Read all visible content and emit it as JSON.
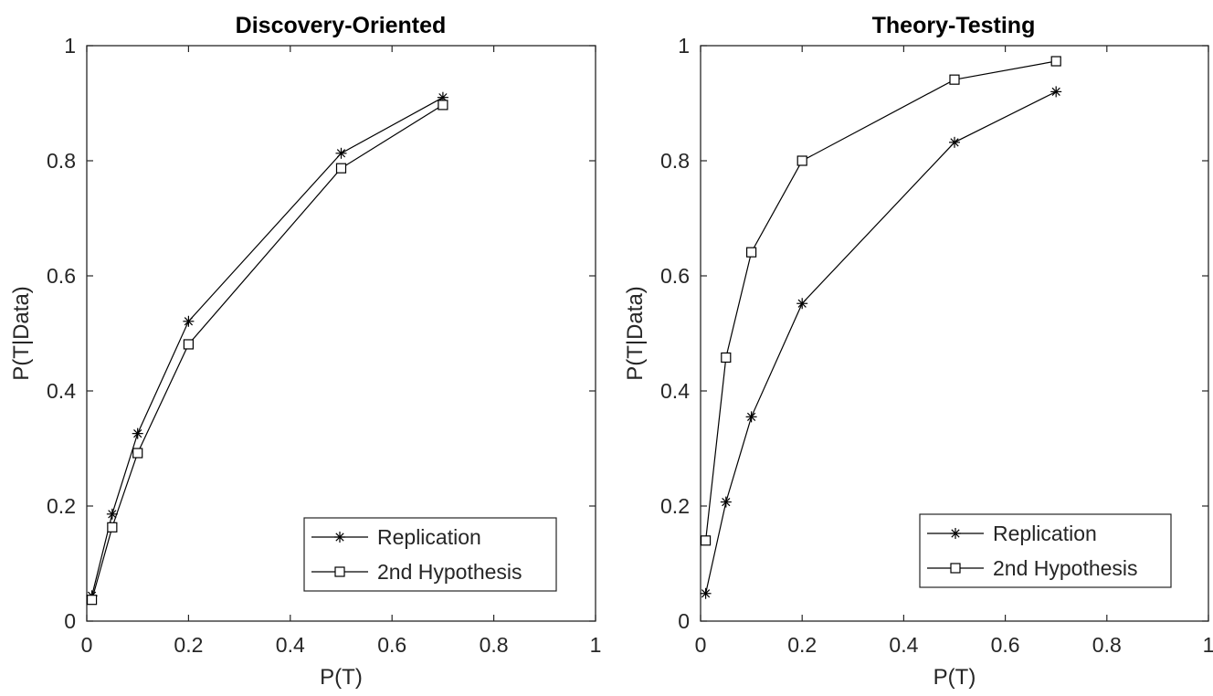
{
  "chart_data": [
    {
      "type": "line",
      "title": "Discovery-Oriented",
      "xlabel": "P(T)",
      "ylabel": "P(T|Data)",
      "xlim": [
        0,
        1
      ],
      "ylim": [
        0,
        1
      ],
      "xticks": [
        0,
        0.2,
        0.4,
        0.6,
        0.8,
        1
      ],
      "yticks": [
        0,
        0.2,
        0.4,
        0.6,
        0.8,
        1
      ],
      "xtick_labels": [
        "0",
        "0.2",
        "0.4",
        "0.6",
        "0.8",
        "1"
      ],
      "ytick_labels": [
        "0",
        "0.2",
        "0.4",
        "0.6",
        "0.8",
        "1"
      ],
      "grid": false,
      "legend_position": "bottom-right",
      "x": [
        0.01,
        0.05,
        0.1,
        0.2,
        0.5,
        0.7
      ],
      "series": [
        {
          "name": "Replication",
          "marker": "asterisk",
          "values": [
            0.044,
            0.186,
            0.326,
            0.521,
            0.813,
            0.91
          ]
        },
        {
          "name": "2nd Hypothesis",
          "marker": "square",
          "values": [
            0.037,
            0.163,
            0.292,
            0.481,
            0.787,
            0.897
          ]
        }
      ]
    },
    {
      "type": "line",
      "title": "Theory-Testing",
      "xlabel": "P(T)",
      "ylabel": "P(T|Data)",
      "xlim": [
        0,
        1
      ],
      "ylim": [
        0,
        1
      ],
      "xticks": [
        0,
        0.2,
        0.4,
        0.6,
        0.8,
        1
      ],
      "yticks": [
        0,
        0.2,
        0.4,
        0.6,
        0.8,
        1
      ],
      "xtick_labels": [
        "0",
        "0.2",
        "0.4",
        "0.6",
        "0.8",
        "1"
      ],
      "ytick_labels": [
        "0",
        "0.2",
        "0.4",
        "0.6",
        "0.8",
        "1"
      ],
      "grid": false,
      "legend_position": "bottom-right",
      "x": [
        0.01,
        0.05,
        0.1,
        0.2,
        0.5,
        0.7
      ],
      "series": [
        {
          "name": "Replication",
          "marker": "asterisk",
          "values": [
            0.048,
            0.207,
            0.355,
            0.552,
            0.832,
            0.92
          ]
        },
        {
          "name": "2nd Hypothesis",
          "marker": "square",
          "values": [
            0.14,
            0.458,
            0.641,
            0.8,
            0.941,
            0.973
          ]
        }
      ]
    }
  ],
  "colors": {
    "line": "#000000",
    "axis": "#262626",
    "background": "#ffffff"
  }
}
